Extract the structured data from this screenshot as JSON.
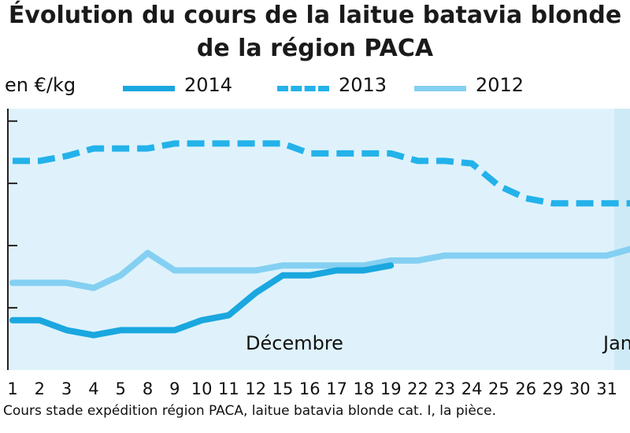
{
  "chart_data": {
    "type": "line",
    "title_line1": "Évolution du cours de la laitue batavia blonde",
    "title_line2": "de la région PACA",
    "ylabel": "en €/kg",
    "ylim": [
      0,
      1.05
    ],
    "grid": false,
    "legend_placement": "top",
    "x_ticks": [
      "1",
      "2",
      "3",
      "4",
      "5",
      "8",
      "9",
      "10",
      "11",
      "12",
      "15",
      "16",
      "17",
      "18",
      "19",
      "22",
      "23",
      "24",
      "25",
      "26",
      "29",
      "30",
      "31",
      "1"
    ],
    "month_labels": [
      "Décembre",
      "Jan"
    ],
    "series": [
      {
        "name": "2014",
        "color": "#1aa7df",
        "style": "solid",
        "values": [
          0.2,
          0.2,
          0.16,
          0.14,
          0.16,
          0.16,
          0.16,
          0.2,
          0.22,
          0.31,
          0.38,
          0.38,
          0.4,
          0.4,
          0.42
        ]
      },
      {
        "name": "2013",
        "color": "#23b2ea",
        "style": "dashed",
        "values": [
          0.84,
          0.84,
          0.86,
          0.89,
          0.89,
          0.89,
          0.91,
          0.91,
          0.91,
          0.91,
          0.91,
          0.87,
          0.87,
          0.87,
          0.87,
          0.84,
          0.84,
          0.83,
          0.74,
          0.69,
          0.67,
          0.67,
          0.67,
          0.67
        ]
      },
      {
        "name": "2012",
        "color": "#84d0f2",
        "style": "solid",
        "values": [
          0.35,
          0.35,
          0.35,
          0.33,
          0.38,
          0.47,
          0.4,
          0.4,
          0.4,
          0.4,
          0.42,
          0.42,
          0.42,
          0.42,
          0.44,
          0.44,
          0.46,
          0.46,
          0.46,
          0.46,
          0.46,
          0.46,
          0.46,
          0.49
        ]
      }
    ],
    "footnote": "Cours stade expédition région PACA, laitue batavia blonde cat. I, la pièce."
  }
}
